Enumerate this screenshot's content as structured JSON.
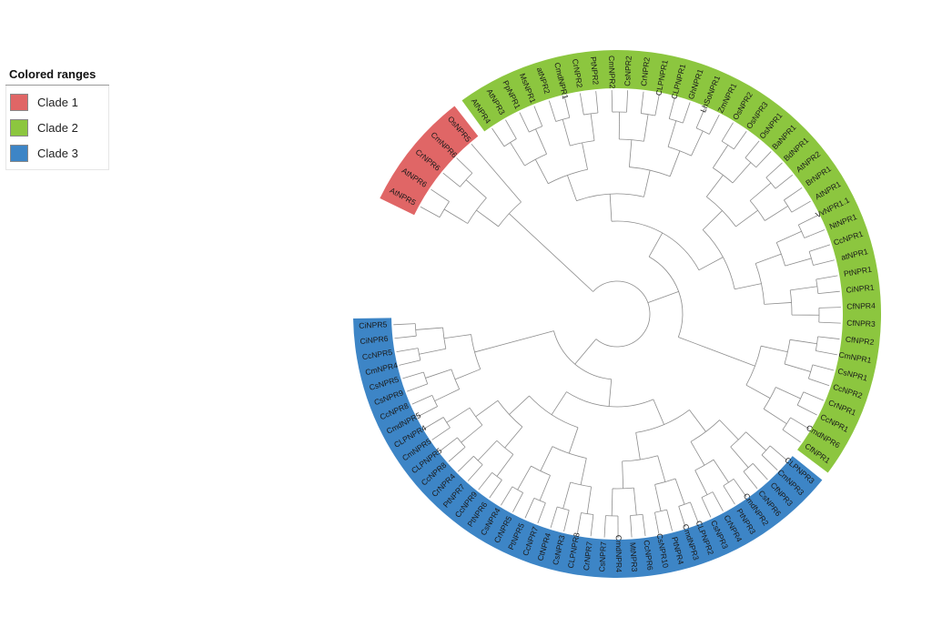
{
  "legend": {
    "title": "Colored ranges",
    "items": [
      {
        "label": "Clade 1",
        "color": "#e06666"
      },
      {
        "label": "Clade 2",
        "color": "#8cc63f"
      },
      {
        "label": "Clade 3",
        "color": "#3d85c6"
      }
    ]
  },
  "clades": {
    "clade1": [
      "AtNPR5",
      "AtNPR6",
      "CrNPR6",
      "CmNPR6",
      "OsNPR5"
    ],
    "clade2": [
      "AtNPR4",
      "AtNPR3",
      "PpNPR1",
      "MsNPR1",
      "atNPR2",
      "CmdNPR1",
      "CrNPR2",
      "PtNPR2",
      "CmNPR2",
      "CsNPR2",
      "CrNPR2",
      "CLPNPR1",
      "CLPNPR1",
      "GhNPR1",
      "LhSoNPR1",
      "ZmNPR1",
      "OsNPR2",
      "OsNPR3",
      "OsNPR1",
      "BaNPR1",
      "BdNPR1",
      "AtNPR2",
      "BrNPR1",
      "AtNPR1",
      "VvNPR1.1",
      "NtNPR1",
      "CcNPR1",
      "atNPR1",
      "PtNPR1",
      "CiNPR1",
      "CfNPR4",
      "CfNPR3",
      "CfNPR2",
      "CmNPR1",
      "CsNPR1",
      "CcNPR2",
      "CrNPR1",
      "CcNPR1",
      "CmdNPR6",
      "CfNPR1"
    ],
    "clade3": [
      "CLPNPR3",
      "CmNPR3",
      "CfNPR3",
      "CsNPR6",
      "CmdNPR2",
      "PtNPR3",
      "CrNPR4",
      "CsNPR3",
      "CLPNPR2",
      "CmdNPR3",
      "PtNPR4",
      "CsNPR10",
      "CcNPR6",
      "MtNPR3",
      "CmdNPR4",
      "CsNPR7",
      "CrNPR7",
      "CLPNPR8",
      "CsNPR3",
      "CtNPR4",
      "CcNPR7",
      "PtNPR5",
      "CrNPR5",
      "CsNPR4",
      "PtNPR6",
      "CcNPR9",
      "PtNPR7",
      "CrNPR4",
      "CcNPR8",
      "CLPNPR5",
      "CmNPR5",
      "CLPNPR4",
      "CmdNPR5",
      "CcNPR8",
      "CsNPR9",
      "CsNPR5",
      "CmNPR4",
      "CcNPR5",
      "CiNPR6",
      "CiNPR5"
    ]
  }
}
